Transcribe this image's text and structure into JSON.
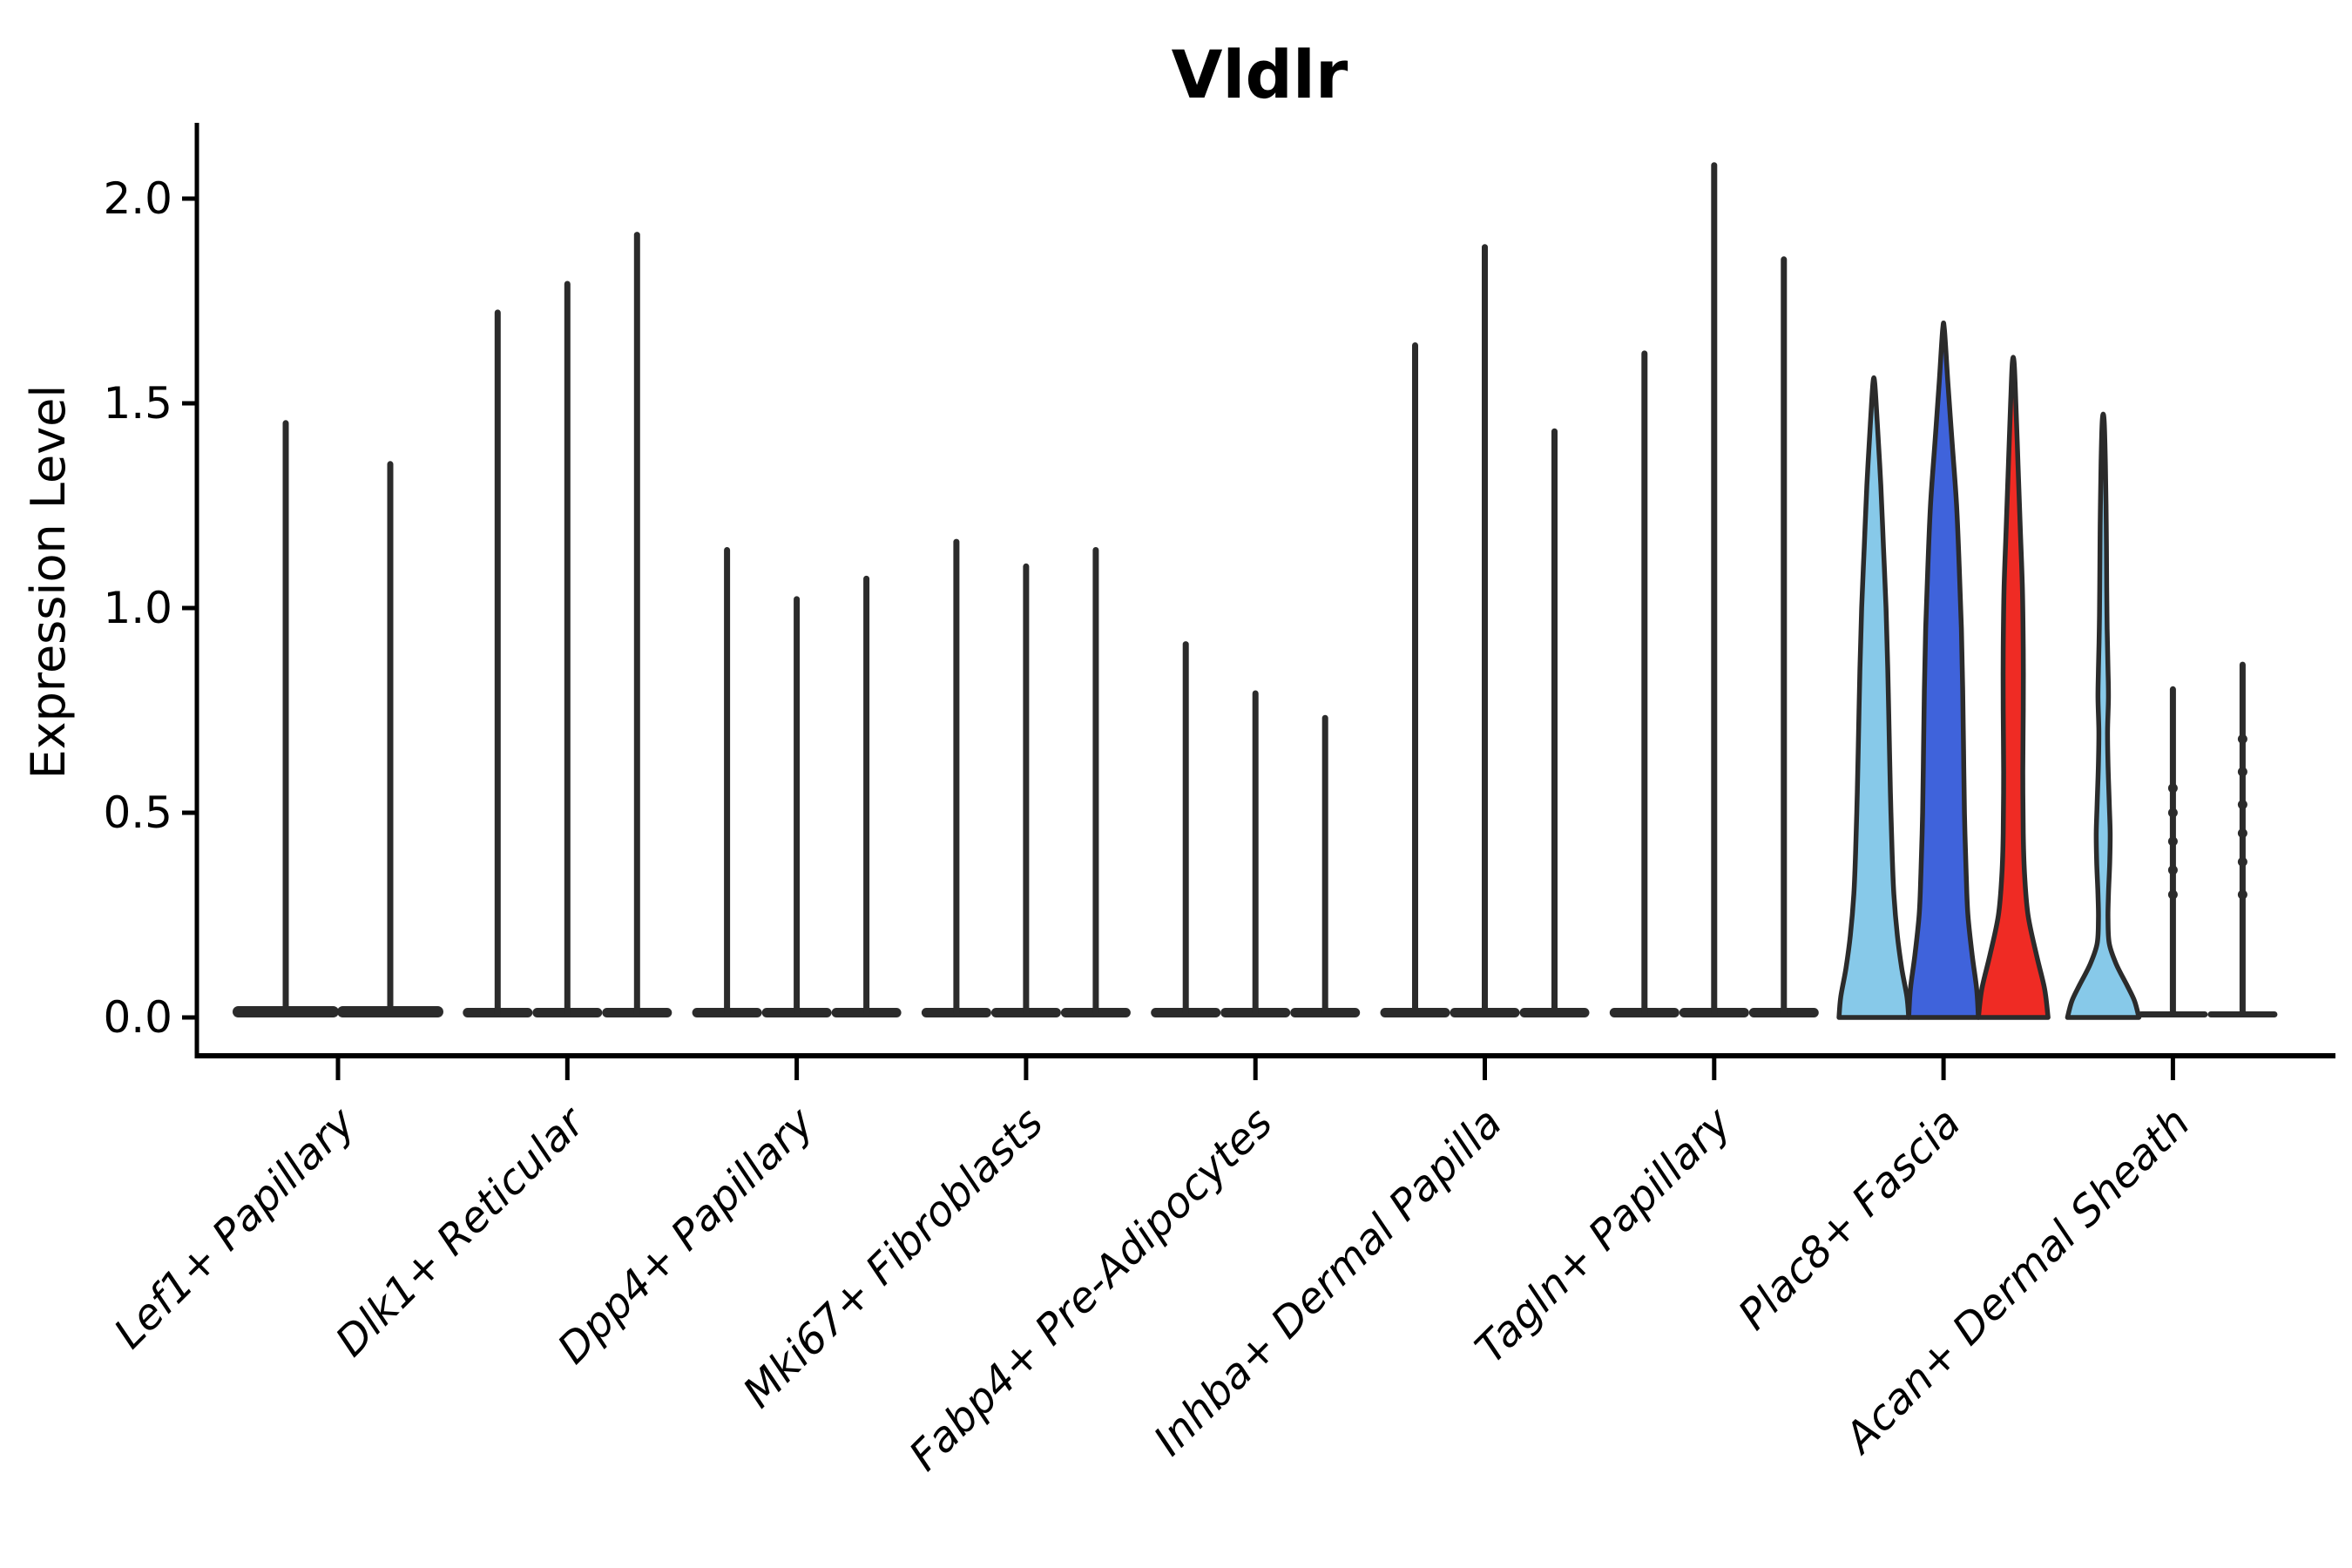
{
  "title": "Vldlr",
  "chart_data": {
    "type": "violin",
    "title": "Vldlr",
    "xlabel": "",
    "ylabel": "Expression Level",
    "ylim": [
      -0.09,
      2.2
    ],
    "grid": false,
    "legend_position": "none",
    "yticks": [
      {
        "value": 0.0,
        "label": "0.0"
      },
      {
        "value": 0.5,
        "label": "0.5"
      },
      {
        "value": 1.0,
        "label": "1.0"
      },
      {
        "value": 1.5,
        "label": "1.5"
      },
      {
        "value": 2.0,
        "label": "2.0"
      }
    ],
    "categories": [
      "Lef1+ Papillary",
      "Dlk1+ Reticular",
      "Dpp4+ Papillary",
      "Mki67+ Fibroblasts",
      "Fabp4+ Pre-Adipocytes",
      "Inhba+ Dermal Papilla",
      "Tagln+ Papillary",
      "Plac8+ Fascia",
      "Acan+ Dermal Sheath"
    ],
    "colors": {
      "light_blue": "#87C9E9",
      "royal_blue": "#3F63DB",
      "red": "#EF2B24",
      "spike": "#2B2B2B",
      "axis": "#000000"
    },
    "groups": [
      {
        "category": "Lef1+ Papillary",
        "violins": [
          {
            "offset": -60,
            "max": 1.46,
            "style": "spike",
            "base_halfwidth": 61,
            "base_height": 13
          },
          {
            "offset": 60,
            "max": 1.36,
            "style": "spike",
            "base_halfwidth": 61,
            "base_height": 13
          }
        ]
      },
      {
        "category": "Dlk1+ Reticular",
        "violins": [
          {
            "offset": -80,
            "max": 1.73,
            "style": "spike",
            "base_halfwidth": 40,
            "base_height": 11
          },
          {
            "offset": 0,
            "max": 1.8,
            "style": "spike",
            "base_halfwidth": 40,
            "base_height": 11
          },
          {
            "offset": 80,
            "max": 1.92,
            "style": "spike",
            "base_halfwidth": 40,
            "base_height": 11
          }
        ]
      },
      {
        "category": "Dpp4+ Papillary",
        "violins": [
          {
            "offset": -80,
            "max": 1.15,
            "style": "spike",
            "base_halfwidth": 40,
            "base_height": 11
          },
          {
            "offset": 0,
            "max": 1.03,
            "style": "spike",
            "base_halfwidth": 40,
            "base_height": 11
          },
          {
            "offset": 80,
            "max": 1.08,
            "style": "spike",
            "base_halfwidth": 40,
            "base_height": 11
          }
        ]
      },
      {
        "category": "Mki67+ Fibroblasts",
        "violins": [
          {
            "offset": -80,
            "max": 1.17,
            "style": "spike",
            "base_halfwidth": 40,
            "base_height": 11
          },
          {
            "offset": 0,
            "max": 1.11,
            "style": "spike",
            "base_halfwidth": 40,
            "base_height": 11
          },
          {
            "offset": 80,
            "max": 1.15,
            "style": "spike",
            "base_halfwidth": 40,
            "base_height": 11
          }
        ]
      },
      {
        "category": "Fabp4+ Pre-Adipocytes",
        "violins": [
          {
            "offset": -80,
            "max": 0.92,
            "style": "spike",
            "base_halfwidth": 40,
            "base_height": 11
          },
          {
            "offset": 0,
            "max": 0.8,
            "style": "spike",
            "base_halfwidth": 40,
            "base_height": 11
          },
          {
            "offset": 80,
            "max": 0.74,
            "style": "spike",
            "base_halfwidth": 40,
            "base_height": 11
          }
        ]
      },
      {
        "category": "Inhba+ Dermal Papilla",
        "violins": [
          {
            "offset": -80,
            "max": 1.65,
            "style": "spike",
            "base_halfwidth": 40,
            "base_height": 11
          },
          {
            "offset": 0,
            "max": 1.89,
            "style": "spike",
            "base_halfwidth": 40,
            "base_height": 11
          },
          {
            "offset": 80,
            "max": 1.44,
            "style": "spike",
            "base_halfwidth": 40,
            "base_height": 11
          }
        ]
      },
      {
        "category": "Tagln+ Papillary",
        "violins": [
          {
            "offset": -80,
            "max": 1.63,
            "style": "spike",
            "base_halfwidth": 40,
            "base_height": 11
          },
          {
            "offset": 0,
            "max": 2.09,
            "style": "spike",
            "base_halfwidth": 40,
            "base_height": 11
          },
          {
            "offset": 80,
            "max": 1.86,
            "style": "spike",
            "base_halfwidth": 40,
            "base_height": 11
          }
        ]
      },
      {
        "category": "Plac8+ Fascia",
        "violins": [
          {
            "offset": -80,
            "max": 1.55,
            "style": "filled",
            "color": "#87C9E9",
            "profile": [
              [
                1.55,
                1
              ],
              [
                1.45,
                4
              ],
              [
                1.3,
                8
              ],
              [
                1.15,
                11
              ],
              [
                1.0,
                14
              ],
              [
                0.85,
                16
              ],
              [
                0.7,
                17.5
              ],
              [
                0.55,
                19
              ],
              [
                0.4,
                21
              ],
              [
                0.3,
                23
              ],
              [
                0.2,
                27
              ],
              [
                0.12,
                32
              ],
              [
                0.05,
                38
              ],
              [
                0.0,
                40
              ]
            ]
          },
          {
            "offset": 0,
            "max": 1.68,
            "style": "filled",
            "color": "#3F63DB",
            "profile": [
              [
                1.68,
                1
              ],
              [
                1.55,
                5
              ],
              [
                1.4,
                10
              ],
              [
                1.25,
                15
              ],
              [
                1.1,
                18
              ],
              [
                0.95,
                20.5
              ],
              [
                0.8,
                22
              ],
              [
                0.65,
                23
              ],
              [
                0.5,
                24
              ],
              [
                0.35,
                26
              ],
              [
                0.25,
                28
              ],
              [
                0.15,
                33
              ],
              [
                0.07,
                38
              ],
              [
                0.0,
                40
              ]
            ]
          },
          {
            "offset": 80,
            "max": 1.6,
            "style": "filled",
            "color": "#EF2B24",
            "profile": [
              [
                1.6,
                1
              ],
              [
                1.5,
                3
              ],
              [
                1.35,
                5.5
              ],
              [
                1.2,
                8
              ],
              [
                1.05,
                10.5
              ],
              [
                0.9,
                11.5
              ],
              [
                0.75,
                11.5
              ],
              [
                0.6,
                11
              ],
              [
                0.45,
                11.5
              ],
              [
                0.35,
                13
              ],
              [
                0.25,
                17
              ],
              [
                0.15,
                27
              ],
              [
                0.07,
                36
              ],
              [
                0.0,
                40
              ]
            ]
          }
        ]
      },
      {
        "category": "Acan+ Dermal Sheath",
        "violins": [
          {
            "offset": -80,
            "max": 1.46,
            "style": "filled",
            "color": "#87C9E9",
            "profile": [
              [
                1.46,
                1
              ],
              [
                1.35,
                2.5
              ],
              [
                1.2,
                3.5
              ],
              [
                1.05,
                4
              ],
              [
                0.95,
                4.5
              ],
              [
                0.85,
                5.5
              ],
              [
                0.78,
                6
              ],
              [
                0.7,
                5
              ],
              [
                0.62,
                5.5
              ],
              [
                0.52,
                7
              ],
              [
                0.45,
                8
              ],
              [
                0.38,
                7.5
              ],
              [
                0.3,
                6
              ],
              [
                0.24,
                5.5
              ],
              [
                0.18,
                7
              ],
              [
                0.13,
                15
              ],
              [
                0.08,
                27
              ],
              [
                0.04,
                36
              ],
              [
                0.0,
                41
              ]
            ]
          },
          {
            "offset": 0,
            "max": 0.81,
            "style": "spike",
            "base_halfwidth": 40,
            "base_height": 7,
            "dots": [
              0.3,
              0.36,
              0.43,
              0.5,
              0.56
            ]
          },
          {
            "offset": 80,
            "max": 0.87,
            "style": "spike",
            "base_halfwidth": 40,
            "base_height": 7,
            "dots": [
              0.3,
              0.38,
              0.45,
              0.52,
              0.6,
              0.68
            ]
          }
        ]
      }
    ]
  }
}
